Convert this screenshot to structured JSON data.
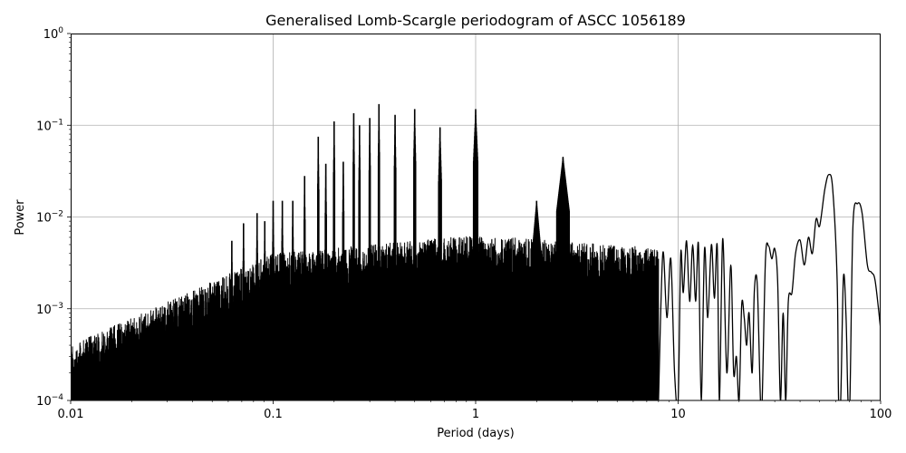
{
  "chart_data": {
    "type": "line",
    "title": "Generalised Lomb-Scargle periodogram of ASCC 1056189",
    "xlabel": "Period (days)",
    "ylabel": "Power",
    "xscale": "log",
    "yscale": "log",
    "xlim": [
      0.01,
      100
    ],
    "ylim": [
      0.0001,
      1
    ],
    "grid": true,
    "legend": null,
    "x_ticks": [
      {
        "value": 0.01,
        "label": "0.01"
      },
      {
        "value": 0.1,
        "label": "0.1"
      },
      {
        "value": 1,
        "label": "1"
      },
      {
        "value": 10,
        "label": "10"
      },
      {
        "value": 100,
        "label": "100"
      }
    ],
    "y_ticks": [
      {
        "value": 0.0001,
        "base": "10",
        "exp": "−4"
      },
      {
        "value": 0.001,
        "base": "10",
        "exp": "−3"
      },
      {
        "value": 0.01,
        "base": "10",
        "exp": "−2"
      },
      {
        "value": 0.1,
        "base": "10",
        "exp": "−1"
      },
      {
        "value": 1,
        "base": "10",
        "exp": "0"
      }
    ],
    "line_color": "#000000",
    "grid_color": "#b0b0b0",
    "alias_peaks": [
      {
        "period": 0.125,
        "power": 0.015
      },
      {
        "period": 0.143,
        "power": 0.028
      },
      {
        "period": 0.167,
        "power": 0.075
      },
      {
        "period": 0.182,
        "power": 0.038
      },
      {
        "period": 0.2,
        "power": 0.11
      },
      {
        "period": 0.222,
        "power": 0.04
      },
      {
        "period": 0.25,
        "power": 0.135
      },
      {
        "period": 0.267,
        "power": 0.1
      },
      {
        "period": 0.333,
        "power": 0.17
      },
      {
        "period": 0.3,
        "power": 0.12
      },
      {
        "period": 0.4,
        "power": 0.13
      },
      {
        "period": 0.5,
        "power": 0.15
      },
      {
        "period": 0.667,
        "power": 0.095
      },
      {
        "period": 1.0,
        "power": 0.15
      },
      {
        "period": 2.0,
        "power": 0.015
      },
      {
        "period": 2.7,
        "power": 0.045
      },
      {
        "period": 0.0625,
        "power": 0.0055
      },
      {
        "period": 0.0714,
        "power": 0.0085
      },
      {
        "period": 0.0833,
        "power": 0.011
      },
      {
        "period": 0.0909,
        "power": 0.009
      },
      {
        "period": 0.1,
        "power": 0.015
      },
      {
        "period": 0.111,
        "power": 0.015
      }
    ],
    "long_period_curve": [
      [
        8.0,
        0.0001
      ],
      [
        8.4,
        0.004
      ],
      [
        8.8,
        0.0008
      ],
      [
        9.2,
        0.0035
      ],
      [
        9.6,
        0.0002
      ],
      [
        10.0,
        0.0001
      ],
      [
        10.3,
        0.004
      ],
      [
        10.6,
        0.0015
      ],
      [
        11.0,
        0.0055
      ],
      [
        11.4,
        0.0012
      ],
      [
        11.8,
        0.005
      ],
      [
        12.2,
        0.0012
      ],
      [
        12.6,
        0.005
      ],
      [
        13.0,
        0.0001
      ],
      [
        13.5,
        0.0045
      ],
      [
        14.0,
        0.0008
      ],
      [
        14.6,
        0.005
      ],
      [
        15.1,
        0.0013
      ],
      [
        15.6,
        0.0048
      ],
      [
        16.0,
        0.0001
      ],
      [
        16.6,
        0.0058
      ],
      [
        17.4,
        0.0002
      ],
      [
        18.2,
        0.003
      ],
      [
        18.8,
        0.0002
      ],
      [
        19.4,
        0.0003
      ],
      [
        20.0,
        0.0001
      ],
      [
        20.6,
        0.0011
      ],
      [
        21.2,
        0.0008
      ],
      [
        21.8,
        0.0004
      ],
      [
        22.4,
        0.0009
      ],
      [
        23.2,
        0.0002
      ],
      [
        23.8,
        0.0016
      ],
      [
        24.6,
        0.0018
      ],
      [
        25.5,
        0.0001
      ],
      [
        26.0,
        0.0001
      ],
      [
        27.0,
        0.0035
      ],
      [
        28.0,
        0.0048
      ],
      [
        29.0,
        0.0035
      ],
      [
        30.0,
        0.0045
      ],
      [
        31.0,
        0.002
      ],
      [
        32.0,
        0.0001
      ],
      [
        33.0,
        0.0009
      ],
      [
        34.0,
        0.0001
      ],
      [
        35.0,
        0.0012
      ],
      [
        36.5,
        0.0015
      ],
      [
        38.0,
        0.004
      ],
      [
        40.0,
        0.0056
      ],
      [
        42.0,
        0.003
      ],
      [
        44.0,
        0.006
      ],
      [
        46.0,
        0.004
      ],
      [
        48.0,
        0.0095
      ],
      [
        50.0,
        0.008
      ],
      [
        53.0,
        0.02
      ],
      [
        55.5,
        0.029
      ],
      [
        58.0,
        0.02
      ],
      [
        61.0,
        0.002
      ],
      [
        62.0,
        0.0001
      ],
      [
        63.5,
        0.0001
      ],
      [
        65.5,
        0.0022
      ],
      [
        67.5,
        0.0008
      ],
      [
        69.0,
        0.0001
      ],
      [
        70.5,
        0.0001
      ],
      [
        73.0,
        0.008
      ],
      [
        77.0,
        0.014
      ],
      [
        81.0,
        0.011
      ],
      [
        86.0,
        0.003
      ],
      [
        90.0,
        0.0025
      ],
      [
        94.0,
        0.002
      ],
      [
        100.0,
        0.0006
      ]
    ]
  }
}
